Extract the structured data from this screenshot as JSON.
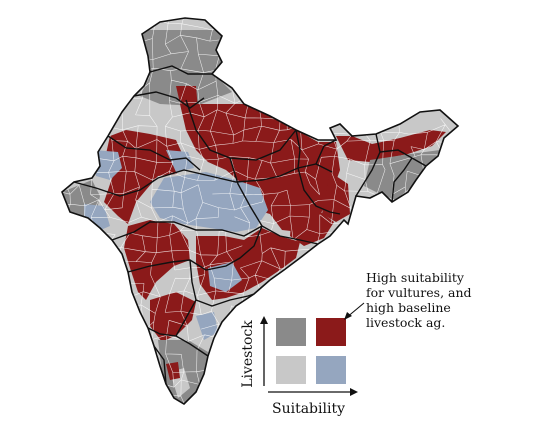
{
  "map": {
    "colors": {
      "high_livestock_low_suitability": "#8a8a8a",
      "high_livestock_high_suitability": "#8b1a1a",
      "low_livestock_low_suitability": "#c8c8c8",
      "low_livestock_high_suitability": "#95a6bf",
      "state_border": "#111111",
      "district_border": "#ffffff"
    }
  },
  "annotation": {
    "lines": [
      "High suitability",
      "for vultures, and",
      "high baseline",
      "livestock ag."
    ]
  },
  "legend": {
    "y_axis_label": "Livestock",
    "x_axis_label": "Suitability",
    "cells": [
      {
        "livestock": "high",
        "suitability": "low",
        "color": "#8a8a8a"
      },
      {
        "livestock": "high",
        "suitability": "high",
        "color": "#8b1a1a"
      },
      {
        "livestock": "low",
        "suitability": "low",
        "color": "#c8c8c8"
      },
      {
        "livestock": "low",
        "suitability": "high",
        "color": "#95a6bf"
      }
    ]
  }
}
